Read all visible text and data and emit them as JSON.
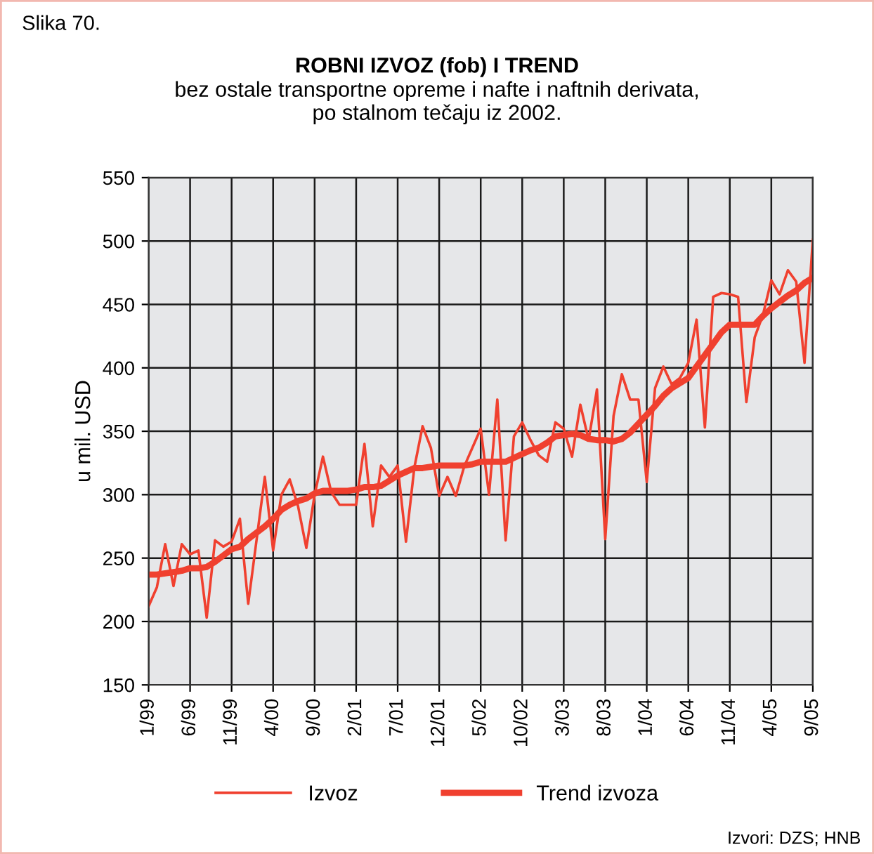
{
  "chart_data": {
    "type": "line",
    "title": "ROBNI IZVOZ (fob) I TREND",
    "subtitle": "bez ostale transportne opreme i nafte i naftnih derivata,\npo stalnom tečaju iz 2002.",
    "ylabel": "u mil. USD",
    "annotations": [
      "Slika 70.",
      "Izvori: DZS; HNB"
    ],
    "categories": [
      "1/99",
      null,
      null,
      null,
      null,
      "6/99",
      null,
      null,
      null,
      null,
      "11/99",
      null,
      null,
      null,
      null,
      "4/00",
      null,
      null,
      null,
      null,
      "9/00",
      null,
      null,
      null,
      null,
      "2/01",
      null,
      null,
      null,
      null,
      "7/01",
      null,
      null,
      null,
      null,
      "12/01",
      null,
      null,
      null,
      null,
      "5/02",
      null,
      null,
      null,
      null,
      "10/02",
      null,
      null,
      null,
      null,
      "3/03",
      null,
      null,
      null,
      null,
      "8/03",
      null,
      null,
      null,
      null,
      "1/04",
      null,
      null,
      null,
      null,
      "6/04",
      null,
      null,
      null,
      null,
      "11/04",
      null,
      null,
      null,
      null,
      "4/05",
      null,
      null,
      null,
      null,
      "9/05"
    ],
    "series": [
      {
        "name": "Izvoz",
        "color": "#f0402f",
        "values": [
          212,
          227,
          261,
          228,
          261,
          253,
          256,
          203,
          264,
          259,
          263,
          281,
          214,
          264,
          314,
          256,
          300,
          312,
          291,
          258,
          300,
          330,
          302,
          292,
          292,
          292,
          340,
          275,
          323,
          314,
          323,
          263,
          321,
          354,
          337,
          299,
          314,
          299,
          322,
          337,
          352,
          300,
          375,
          264,
          346,
          357,
          343,
          331,
          326,
          357,
          352,
          330,
          371,
          343,
          383,
          265,
          362,
          395,
          375,
          375,
          310,
          384,
          401,
          387,
          392,
          404,
          438,
          353,
          456,
          459,
          458,
          456,
          373,
          424,
          442,
          469,
          458,
          477,
          468,
          404,
          501
        ]
      },
      {
        "name": "Trend izvoza",
        "color": "#f0402f",
        "values": [
          237,
          237,
          238,
          239,
          240,
          242,
          242,
          243,
          247,
          252,
          257,
          259,
          265,
          270,
          275,
          281,
          288,
          292,
          295,
          297,
          301,
          303,
          303,
          303,
          303,
          304,
          306,
          306,
          307,
          311,
          315,
          318,
          321,
          321,
          322,
          323,
          323,
          323,
          323,
          324,
          326,
          326,
          326,
          326,
          329,
          332,
          335,
          337,
          341,
          346,
          347,
          348,
          347,
          344,
          343,
          343,
          342,
          344,
          349,
          356,
          363,
          370,
          378,
          384,
          388,
          392,
          401,
          410,
          419,
          428,
          434,
          434,
          434,
          434,
          441,
          447,
          452,
          457,
          461,
          467,
          471
        ]
      }
    ],
    "ylim": [
      150,
      550
    ],
    "yticks": [
      150,
      200,
      250,
      300,
      350,
      400,
      450,
      500,
      550
    ],
    "grid": true,
    "legend": "bottom",
    "marker": "none",
    "line_style": "solid"
  }
}
